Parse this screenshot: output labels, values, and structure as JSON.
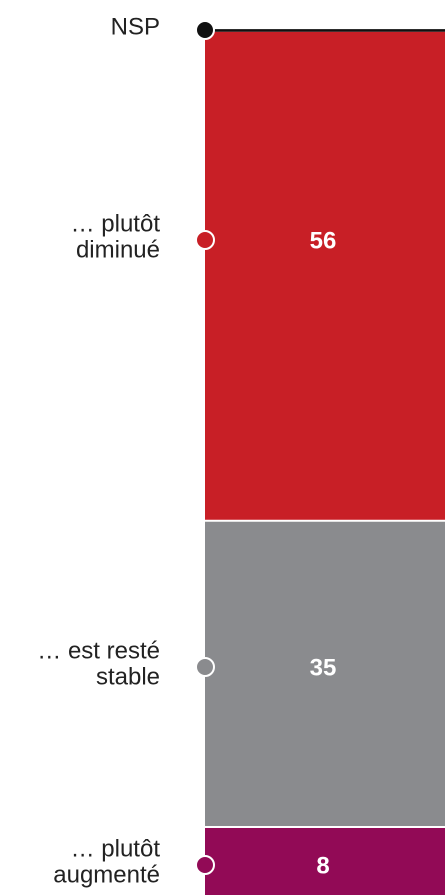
{
  "chart_data": {
    "type": "stacked-bar",
    "categories": [
      [
        "NSP"
      ],
      [
        "… plutôt",
        "diminué"
      ],
      [
        "… est resté",
        "stable"
      ],
      [
        "… plutôt",
        "augmenté"
      ]
    ],
    "values": [
      0.3,
      56,
      35,
      8
    ],
    "value_labels": [
      null,
      "56",
      "35",
      "8"
    ],
    "colors": [
      "#111111",
      "#c81f26",
      "#8a8b8e",
      "#920a56"
    ]
  }
}
